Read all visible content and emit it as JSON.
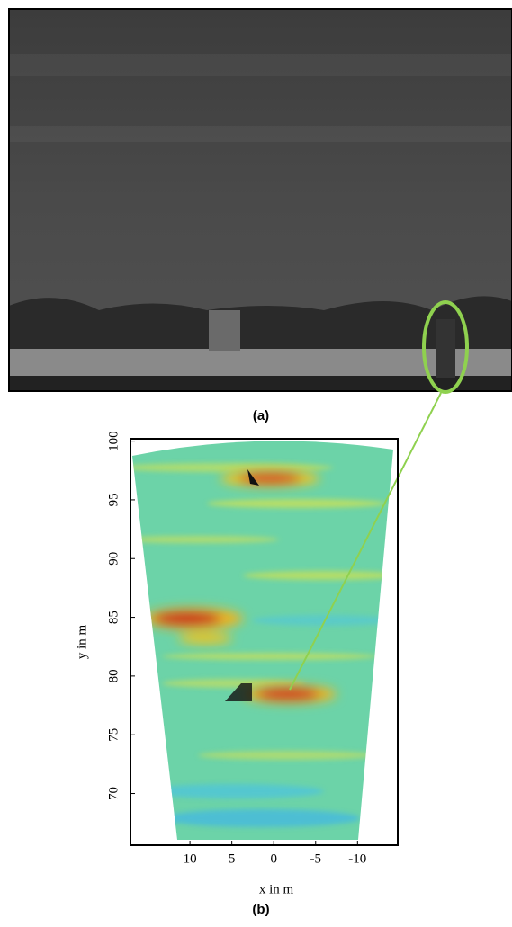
{
  "panels": [
    {
      "label": "(a)"
    },
    {
      "label": "(b)",
      "x_label": "x in m",
      "y_label": "y in m",
      "xticks": [
        10,
        5,
        0,
        -5,
        -10
      ],
      "yticks": [
        70,
        75,
        80,
        85,
        90,
        95,
        100
      ],
      "xlim": [
        17.1,
        -14.8
      ],
      "ylim": [
        65.6,
        100.2
      ]
    }
  ]
}
